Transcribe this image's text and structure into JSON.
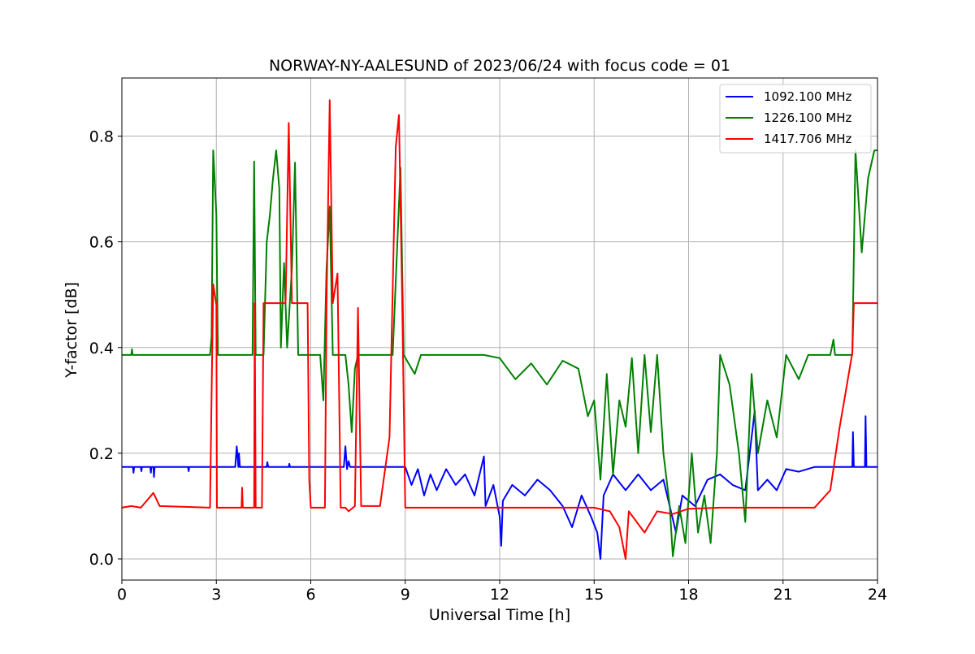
{
  "chart_data": {
    "type": "line",
    "title": "NORWAY-NY-AALESUND of 2023/06/24 with focus code = 01",
    "xlabel": "Universal Time [h]",
    "ylabel": "Y-factor [dB]",
    "xlim": [
      0,
      24
    ],
    "ylim": [
      -0.04,
      0.91
    ],
    "xticks": [
      0,
      3,
      6,
      9,
      12,
      15,
      18,
      21,
      24
    ],
    "yticks": [
      0.0,
      0.2,
      0.4,
      0.6,
      0.8
    ],
    "xtick_labels": [
      "0",
      "3",
      "6",
      "9",
      "12",
      "15",
      "18",
      "21",
      "24"
    ],
    "ytick_labels": [
      "0.0",
      "0.2",
      "0.4",
      "0.6",
      "0.8"
    ],
    "grid": true,
    "legend_position": "top-right",
    "series": [
      {
        "name": "1092.100 MHz",
        "color": "#0000ff",
        "points": [
          [
            0,
            0.174
          ],
          [
            0.35,
            0.174
          ],
          [
            0.37,
            0.163
          ],
          [
            0.39,
            0.174
          ],
          [
            0.6,
            0.174
          ],
          [
            0.62,
            0.166
          ],
          [
            0.64,
            0.174
          ],
          [
            0.9,
            0.174
          ],
          [
            0.92,
            0.163
          ],
          [
            0.94,
            0.174
          ],
          [
            1.0,
            0.174
          ],
          [
            1.02,
            0.155
          ],
          [
            1.04,
            0.174
          ],
          [
            2.1,
            0.174
          ],
          [
            2.12,
            0.166
          ],
          [
            2.14,
            0.174
          ],
          [
            3.6,
            0.174
          ],
          [
            3.65,
            0.213
          ],
          [
            3.7,
            0.174
          ],
          [
            3.72,
            0.2
          ],
          [
            3.75,
            0.174
          ],
          [
            4.6,
            0.174
          ],
          [
            4.62,
            0.183
          ],
          [
            4.65,
            0.174
          ],
          [
            5.3,
            0.174
          ],
          [
            5.32,
            0.18
          ],
          [
            5.34,
            0.174
          ],
          [
            7.05,
            0.174
          ],
          [
            7.1,
            0.213
          ],
          [
            7.15,
            0.17
          ],
          [
            7.2,
            0.185
          ],
          [
            7.25,
            0.174
          ],
          [
            9.0,
            0.174
          ],
          [
            9.2,
            0.14
          ],
          [
            9.4,
            0.17
          ],
          [
            9.6,
            0.12
          ],
          [
            9.8,
            0.16
          ],
          [
            10.0,
            0.13
          ],
          [
            10.3,
            0.17
          ],
          [
            10.6,
            0.14
          ],
          [
            10.9,
            0.16
          ],
          [
            11.2,
            0.12
          ],
          [
            11.5,
            0.194
          ],
          [
            11.55,
            0.1
          ],
          [
            11.8,
            0.14
          ],
          [
            12.0,
            0.08
          ],
          [
            12.05,
            0.025
          ],
          [
            12.1,
            0.11
          ],
          [
            12.4,
            0.14
          ],
          [
            12.8,
            0.12
          ],
          [
            13.2,
            0.15
          ],
          [
            13.6,
            0.13
          ],
          [
            14.0,
            0.1
          ],
          [
            14.3,
            0.06
          ],
          [
            14.6,
            0.12
          ],
          [
            14.9,
            0.08
          ],
          [
            15.1,
            0.05
          ],
          [
            15.2,
            0.0
          ],
          [
            15.3,
            0.12
          ],
          [
            15.6,
            0.16
          ],
          [
            16.0,
            0.13
          ],
          [
            16.4,
            0.16
          ],
          [
            16.8,
            0.13
          ],
          [
            17.2,
            0.15
          ],
          [
            17.6,
            0.05
          ],
          [
            17.8,
            0.12
          ],
          [
            18.2,
            0.1
          ],
          [
            18.6,
            0.15
          ],
          [
            19.0,
            0.16
          ],
          [
            19.4,
            0.14
          ],
          [
            19.8,
            0.13
          ],
          [
            20.1,
            0.28
          ],
          [
            20.2,
            0.13
          ],
          [
            20.5,
            0.15
          ],
          [
            20.8,
            0.13
          ],
          [
            21.1,
            0.17
          ],
          [
            21.5,
            0.165
          ],
          [
            22.0,
            0.174
          ],
          [
            23.2,
            0.174
          ],
          [
            23.22,
            0.24
          ],
          [
            23.25,
            0.174
          ],
          [
            23.6,
            0.174
          ],
          [
            23.62,
            0.27
          ],
          [
            23.65,
            0.174
          ],
          [
            24.0,
            0.174
          ]
        ]
      },
      {
        "name": "1226.100 MHz",
        "color": "#008000",
        "points": [
          [
            0,
            0.386
          ],
          [
            0.3,
            0.386
          ],
          [
            0.32,
            0.397
          ],
          [
            0.34,
            0.386
          ],
          [
            2.8,
            0.386
          ],
          [
            2.85,
            0.42
          ],
          [
            2.9,
            0.773
          ],
          [
            3.0,
            0.65
          ],
          [
            3.05,
            0.386
          ],
          [
            4.15,
            0.386
          ],
          [
            4.2,
            0.752
          ],
          [
            4.25,
            0.386
          ],
          [
            4.5,
            0.386
          ],
          [
            4.6,
            0.6
          ],
          [
            4.7,
            0.65
          ],
          [
            4.8,
            0.72
          ],
          [
            4.9,
            0.773
          ],
          [
            5.0,
            0.7
          ],
          [
            5.05,
            0.4
          ],
          [
            5.15,
            0.56
          ],
          [
            5.25,
            0.4
          ],
          [
            5.4,
            0.55
          ],
          [
            5.5,
            0.75
          ],
          [
            5.6,
            0.386
          ],
          [
            6.3,
            0.386
          ],
          [
            6.4,
            0.3
          ],
          [
            6.5,
            0.55
          ],
          [
            6.6,
            0.667
          ],
          [
            6.7,
            0.386
          ],
          [
            7.1,
            0.386
          ],
          [
            7.2,
            0.33
          ],
          [
            7.3,
            0.24
          ],
          [
            7.4,
            0.36
          ],
          [
            7.5,
            0.386
          ],
          [
            8.6,
            0.386
          ],
          [
            8.75,
            0.6
          ],
          [
            8.85,
            0.74
          ],
          [
            8.95,
            0.386
          ],
          [
            9.3,
            0.35
          ],
          [
            9.5,
            0.386
          ],
          [
            11.5,
            0.386
          ],
          [
            12.0,
            0.38
          ],
          [
            12.5,
            0.34
          ],
          [
            13.0,
            0.37
          ],
          [
            13.5,
            0.33
          ],
          [
            14.0,
            0.375
          ],
          [
            14.5,
            0.36
          ],
          [
            14.8,
            0.27
          ],
          [
            15.0,
            0.3
          ],
          [
            15.2,
            0.15
          ],
          [
            15.4,
            0.35
          ],
          [
            15.6,
            0.16
          ],
          [
            15.8,
            0.3
          ],
          [
            16.0,
            0.25
          ],
          [
            16.2,
            0.38
          ],
          [
            16.4,
            0.2
          ],
          [
            16.6,
            0.386
          ],
          [
            16.8,
            0.24
          ],
          [
            17.0,
            0.386
          ],
          [
            17.2,
            0.2
          ],
          [
            17.4,
            0.1
          ],
          [
            17.5,
            0.005
          ],
          [
            17.7,
            0.1
          ],
          [
            17.9,
            0.03
          ],
          [
            18.1,
            0.2
          ],
          [
            18.3,
            0.05
          ],
          [
            18.5,
            0.12
          ],
          [
            18.7,
            0.03
          ],
          [
            18.9,
            0.2
          ],
          [
            19.0,
            0.386
          ],
          [
            19.3,
            0.33
          ],
          [
            19.6,
            0.2
          ],
          [
            19.8,
            0.07
          ],
          [
            20.0,
            0.35
          ],
          [
            20.2,
            0.2
          ],
          [
            20.5,
            0.3
          ],
          [
            20.8,
            0.23
          ],
          [
            21.1,
            0.386
          ],
          [
            21.5,
            0.34
          ],
          [
            21.8,
            0.386
          ],
          [
            22.5,
            0.386
          ],
          [
            22.6,
            0.415
          ],
          [
            22.65,
            0.386
          ],
          [
            23.2,
            0.386
          ],
          [
            23.3,
            0.773
          ],
          [
            23.5,
            0.58
          ],
          [
            23.7,
            0.72
          ],
          [
            23.9,
            0.773
          ],
          [
            24.0,
            0.773
          ]
        ]
      },
      {
        "name": "1417.706 MHz",
        "color": "#ff0000",
        "points": [
          [
            0,
            0.097
          ],
          [
            0.3,
            0.1
          ],
          [
            0.6,
            0.097
          ],
          [
            1.0,
            0.125
          ],
          [
            1.2,
            0.1
          ],
          [
            2.8,
            0.097
          ],
          [
            2.85,
            0.31
          ],
          [
            2.9,
            0.52
          ],
          [
            3.0,
            0.48
          ],
          [
            3.02,
            0.097
          ],
          [
            3.8,
            0.097
          ],
          [
            3.82,
            0.135
          ],
          [
            3.84,
            0.097
          ],
          [
            4.2,
            0.097
          ],
          [
            4.22,
            0.484
          ],
          [
            4.25,
            0.097
          ],
          [
            4.45,
            0.097
          ],
          [
            4.5,
            0.484
          ],
          [
            5.0,
            0.484
          ],
          [
            5.2,
            0.484
          ],
          [
            5.3,
            0.825
          ],
          [
            5.4,
            0.484
          ],
          [
            5.9,
            0.484
          ],
          [
            5.95,
            0.15
          ],
          [
            6.0,
            0.097
          ],
          [
            6.45,
            0.097
          ],
          [
            6.5,
            0.484
          ],
          [
            6.6,
            0.868
          ],
          [
            6.7,
            0.484
          ],
          [
            6.85,
            0.54
          ],
          [
            6.95,
            0.097
          ],
          [
            7.1,
            0.097
          ],
          [
            7.2,
            0.09
          ],
          [
            7.4,
            0.1
          ],
          [
            7.5,
            0.475
          ],
          [
            7.6,
            0.1
          ],
          [
            8.2,
            0.1
          ],
          [
            8.5,
            0.23
          ],
          [
            8.7,
            0.78
          ],
          [
            8.8,
            0.84
          ],
          [
            8.9,
            0.5
          ],
          [
            9.0,
            0.097
          ],
          [
            14.5,
            0.097
          ],
          [
            15.0,
            0.097
          ],
          [
            15.5,
            0.09
          ],
          [
            15.8,
            0.06
          ],
          [
            16.0,
            0.0
          ],
          [
            16.1,
            0.09
          ],
          [
            16.6,
            0.05
          ],
          [
            17.0,
            0.09
          ],
          [
            17.5,
            0.085
          ],
          [
            18.0,
            0.095
          ],
          [
            19.0,
            0.097
          ],
          [
            22.0,
            0.097
          ],
          [
            22.5,
            0.13
          ],
          [
            22.8,
            0.25
          ],
          [
            23.0,
            0.32
          ],
          [
            23.2,
            0.39
          ],
          [
            23.25,
            0.484
          ],
          [
            24.0,
            0.484
          ]
        ]
      }
    ]
  }
}
